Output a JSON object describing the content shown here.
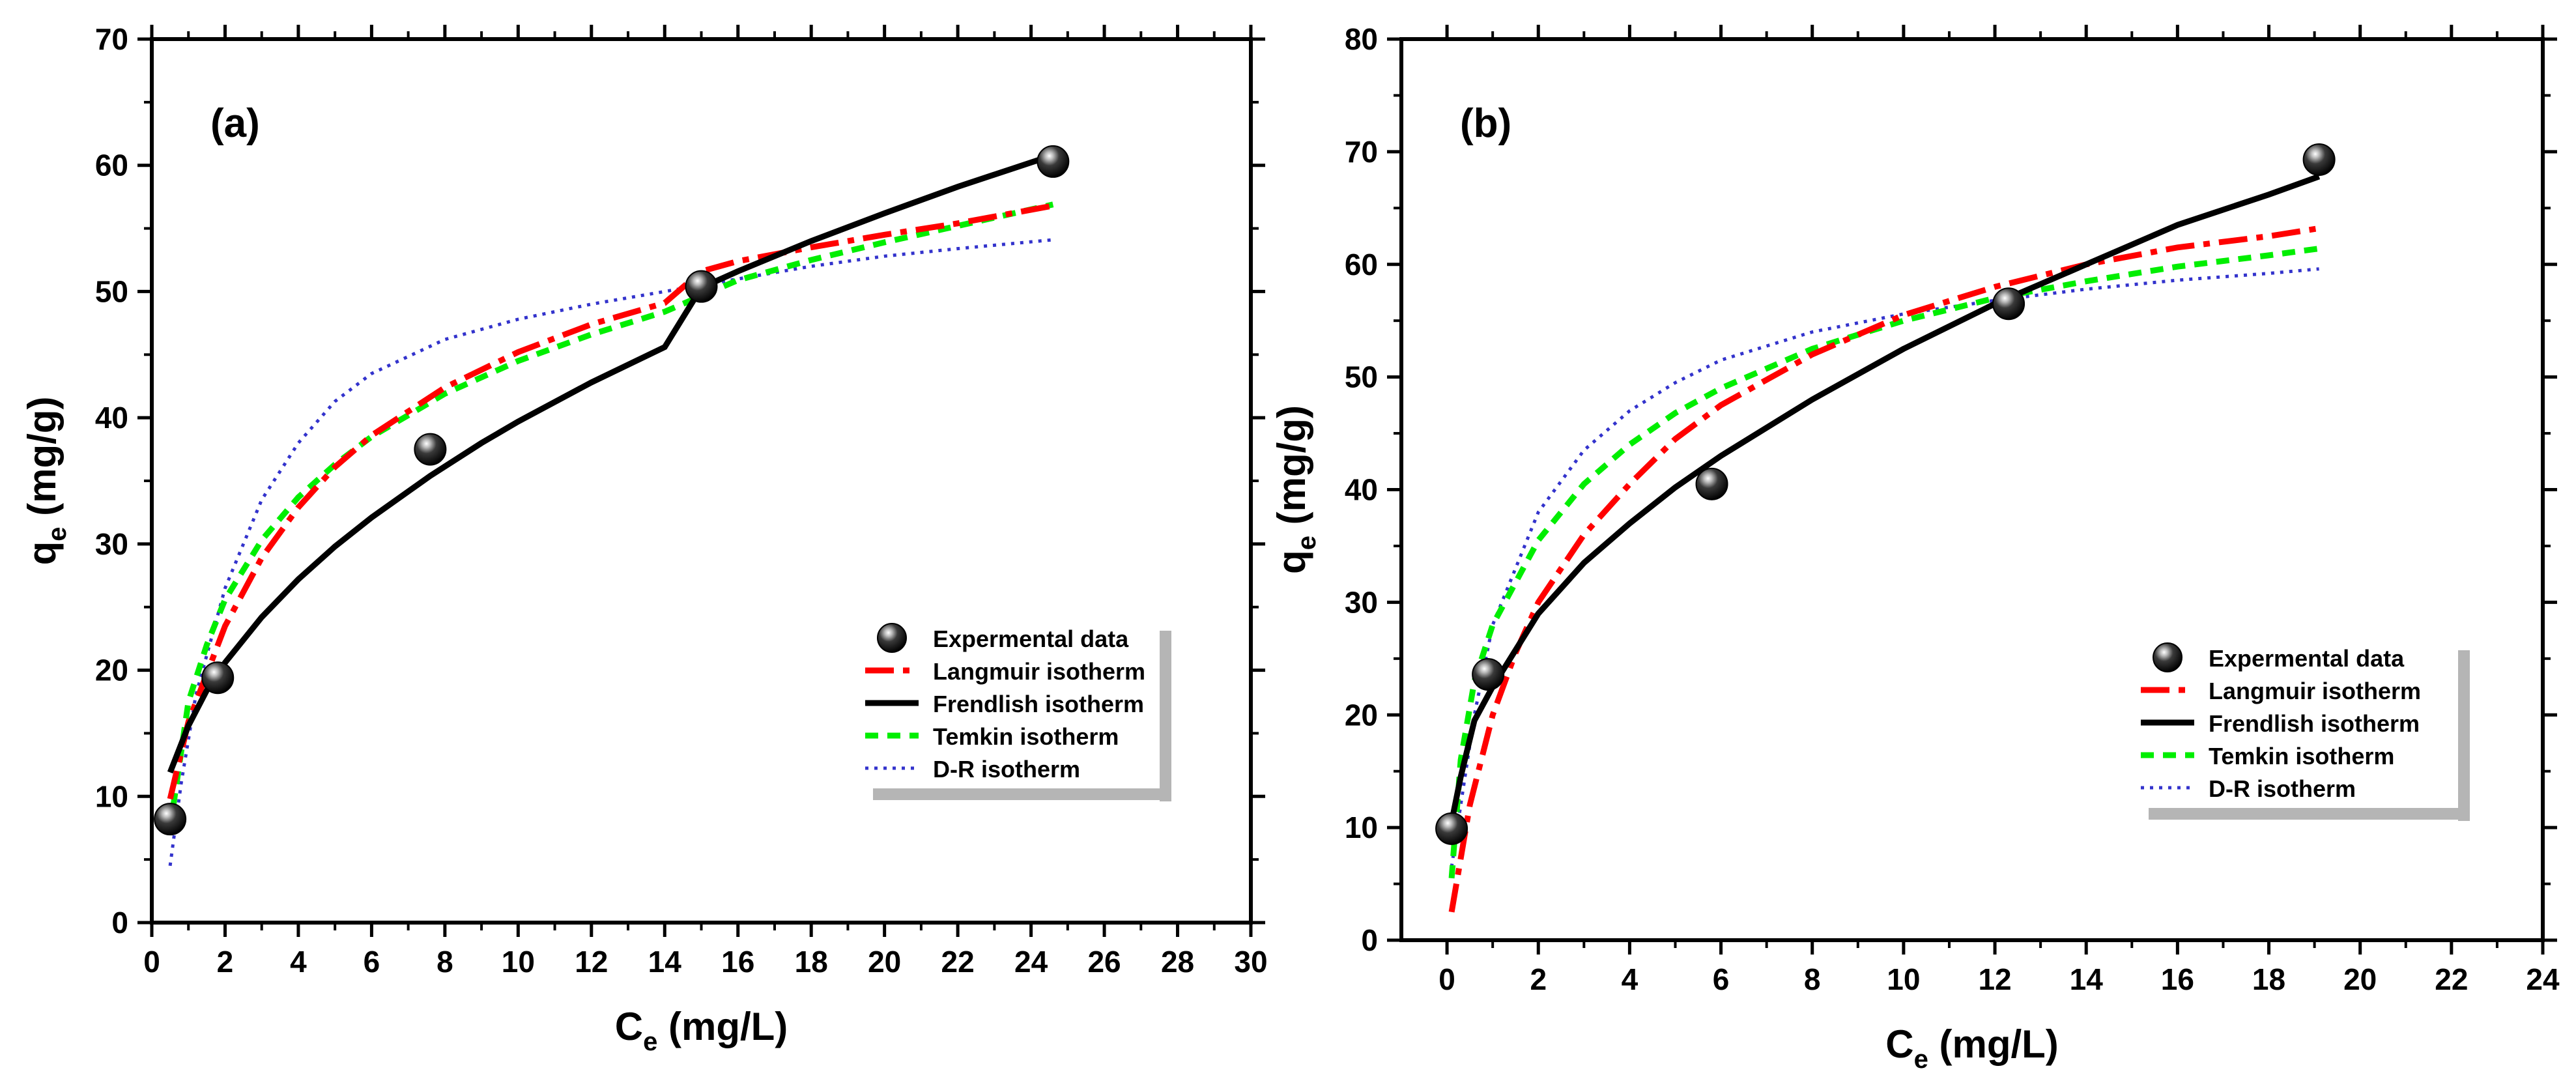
{
  "chart_data": [
    {
      "type": "scatter",
      "panel_label": "(a)",
      "xlabel_main": "C",
      "xlabel_sub": "e",
      "xlabel_unit": " (mg/L)",
      "ylabel_main": "q",
      "ylabel_sub": "e",
      "ylabel_unit": " (mg/g)",
      "xlim": [
        0,
        30
      ],
      "ylim": [
        0,
        70
      ],
      "xticks": [
        "0",
        "2",
        "4",
        "6",
        "8",
        "10",
        "12",
        "14",
        "16",
        "18",
        "20",
        "22",
        "24",
        "26",
        "28",
        "30"
      ],
      "yticks": [
        "0",
        "10",
        "20",
        "30",
        "40",
        "50",
        "60",
        "70"
      ],
      "grid": false,
      "legend_position": "lower-right",
      "experimental": [
        {
          "x": 0.5,
          "y": 8.2
        },
        {
          "x": 1.8,
          "y": 19.4
        },
        {
          "x": 7.6,
          "y": 37.5
        },
        {
          "x": 15.0,
          "y": 50.4
        },
        {
          "x": 24.6,
          "y": 60.3
        }
      ],
      "series": [
        {
          "name": "Expermental data",
          "kind": "marker",
          "color": "#111111"
        },
        {
          "name": "Langmuir isotherm",
          "kind": "dashdot",
          "color": "#ff0000",
          "points": [
            [
              0.5,
              9.8
            ],
            [
              1,
              15.9
            ],
            [
              2,
              23.5
            ],
            [
              3,
              28.9
            ],
            [
              4,
              32.9
            ],
            [
              5,
              36.1
            ],
            [
              6,
              38.6
            ],
            [
              8,
              42.4
            ],
            [
              10,
              45.2
            ],
            [
              12,
              47.4
            ],
            [
              14,
              49.1
            ],
            [
              15,
              51.6
            ],
            [
              16,
              52.4
            ],
            [
              18,
              53.5
            ],
            [
              20,
              54.5
            ],
            [
              22,
              55.4
            ],
            [
              24.6,
              56.8
            ]
          ]
        },
        {
          "name": "Frendlish isotherm",
          "kind": "solid",
          "color": "#000000",
          "points": [
            [
              0.5,
              11.9
            ],
            [
              1,
              15.6
            ],
            [
              1.5,
              18.4
            ],
            [
              2,
              20.6
            ],
            [
              3,
              24.2
            ],
            [
              4,
              27.2
            ],
            [
              5,
              29.8
            ],
            [
              6,
              32.1
            ],
            [
              7.6,
              35.4
            ],
            [
              9,
              38.0
            ],
            [
              10,
              39.7
            ],
            [
              12,
              42.8
            ],
            [
              14,
              45.6
            ],
            [
              15,
              50.3
            ],
            [
              16,
              51.6
            ],
            [
              18,
              54.0
            ],
            [
              20,
              56.2
            ],
            [
              22,
              58.3
            ],
            [
              24.6,
              60.8
            ]
          ]
        },
        {
          "name": "Temkin isotherm",
          "kind": "dotted",
          "color": "#00ee00",
          "points": [
            [
              0.5,
              7.5
            ],
            [
              0.8,
              13.5
            ],
            [
              1,
              17.5
            ],
            [
              1.5,
              22.0
            ],
            [
              2,
              25.6
            ],
            [
              3,
              30.3
            ],
            [
              4,
              33.7
            ],
            [
              5,
              36.3
            ],
            [
              6,
              38.5
            ],
            [
              8,
              41.9
            ],
            [
              10,
              44.5
            ],
            [
              12,
              46.6
            ],
            [
              14,
              48.4
            ],
            [
              16,
              50.9
            ],
            [
              18,
              52.5
            ],
            [
              20,
              53.9
            ],
            [
              22,
              55.2
            ],
            [
              24.6,
              56.9
            ]
          ]
        },
        {
          "name": "D-R isotherm",
          "kind": "fine-dotted",
          "color": "#3333cc",
          "points": [
            [
              0.5,
              4.5
            ],
            [
              0.8,
              11.0
            ],
            [
              1.2,
              18.0
            ],
            [
              2,
              26.5
            ],
            [
              3,
              33.5
            ],
            [
              4,
              38.0
            ],
            [
              5,
              41.3
            ],
            [
              6,
              43.5
            ],
            [
              8,
              46.2
            ],
            [
              10,
              47.8
            ],
            [
              12,
              49.0
            ],
            [
              14,
              50.0
            ],
            [
              16,
              51.0
            ],
            [
              18,
              52.0
            ],
            [
              20,
              52.8
            ],
            [
              22,
              53.4
            ],
            [
              24.6,
              54.1
            ]
          ]
        }
      ]
    },
    {
      "type": "scatter",
      "panel_label": "(b)",
      "xlabel_main": "C",
      "xlabel_sub": "e",
      "xlabel_unit": " (mg/L)",
      "ylabel_main": "q",
      "ylabel_sub": "e",
      "ylabel_unit": " (mg/g)",
      "xlim": [
        -1,
        24
      ],
      "ylim": [
        0,
        80
      ],
      "xticks": [
        "0",
        "2",
        "4",
        "6",
        "8",
        "10",
        "12",
        "14",
        "16",
        "18",
        "20",
        "22",
        "24"
      ],
      "yticks": [
        "0",
        "10",
        "20",
        "30",
        "40",
        "50",
        "60",
        "70",
        "80"
      ],
      "grid": false,
      "legend_position": "lower-right",
      "experimental": [
        {
          "x": 0.1,
          "y": 9.9
        },
        {
          "x": 0.9,
          "y": 23.6
        },
        {
          "x": 5.8,
          "y": 40.5
        },
        {
          "x": 12.3,
          "y": 56.5
        },
        {
          "x": 19.1,
          "y": 69.3
        }
      ],
      "series": [
        {
          "name": "Expermental data",
          "kind": "marker",
          "color": "#111111"
        },
        {
          "name": "Langmuir isotherm",
          "kind": "dashdot",
          "color": "#ff0000",
          "points": [
            [
              0.1,
              2.5
            ],
            [
              0.5,
              12.0
            ],
            [
              1,
              20.0
            ],
            [
              1.5,
              25.5
            ],
            [
              2,
              30.0
            ],
            [
              3,
              36.0
            ],
            [
              4,
              40.5
            ],
            [
              5,
              44.5
            ],
            [
              6,
              47.5
            ],
            [
              8,
              52.0
            ],
            [
              10,
              55.5
            ],
            [
              12,
              58.0
            ],
            [
              14,
              60.0
            ],
            [
              16,
              61.5
            ],
            [
              18,
              62.5
            ],
            [
              19.1,
              63.2
            ]
          ]
        },
        {
          "name": "Frendlish isotherm",
          "kind": "solid",
          "color": "#000000",
          "points": [
            [
              0.1,
              10.5
            ],
            [
              0.3,
              14.5
            ],
            [
              0.6,
              19.5
            ],
            [
              1,
              22.5
            ],
            [
              2,
              29.0
            ],
            [
              3,
              33.5
            ],
            [
              4,
              37.0
            ],
            [
              5,
              40.2
            ],
            [
              6,
              43.0
            ],
            [
              8,
              48.0
            ],
            [
              10,
              52.5
            ],
            [
              12,
              56.5
            ],
            [
              14,
              60.0
            ],
            [
              16,
              63.5
            ],
            [
              18,
              66.2
            ],
            [
              19.1,
              67.8
            ]
          ]
        },
        {
          "name": "Temkin isotherm",
          "kind": "dotted",
          "color": "#00ee00",
          "points": [
            [
              0.1,
              5.5
            ],
            [
              0.3,
              16.0
            ],
            [
              0.6,
              23.0
            ],
            [
              1,
              28.0
            ],
            [
              2,
              35.5
            ],
            [
              3,
              40.5
            ],
            [
              4,
              44.0
            ],
            [
              5,
              46.8
            ],
            [
              6,
              49.0
            ],
            [
              8,
              52.5
            ],
            [
              10,
              55.0
            ],
            [
              12,
              57.0
            ],
            [
              14,
              58.5
            ],
            [
              16,
              59.8
            ],
            [
              18,
              60.8
            ],
            [
              19.1,
              61.4
            ]
          ]
        },
        {
          "name": "D-R isotherm",
          "kind": "fine-dotted",
          "color": "#3333cc",
          "points": [
            [
              0.1,
              6.5
            ],
            [
              0.3,
              12.0
            ],
            [
              0.6,
              20.0
            ],
            [
              1,
              28.0
            ],
            [
              2,
              38.0
            ],
            [
              3,
              43.5
            ],
            [
              4,
              47.0
            ],
            [
              5,
              49.5
            ],
            [
              6,
              51.5
            ],
            [
              8,
              54.0
            ],
            [
              10,
              55.6
            ],
            [
              12,
              56.8
            ],
            [
              14,
              57.8
            ],
            [
              16,
              58.6
            ],
            [
              18,
              59.2
            ],
            [
              19.1,
              59.6
            ]
          ]
        }
      ]
    }
  ]
}
